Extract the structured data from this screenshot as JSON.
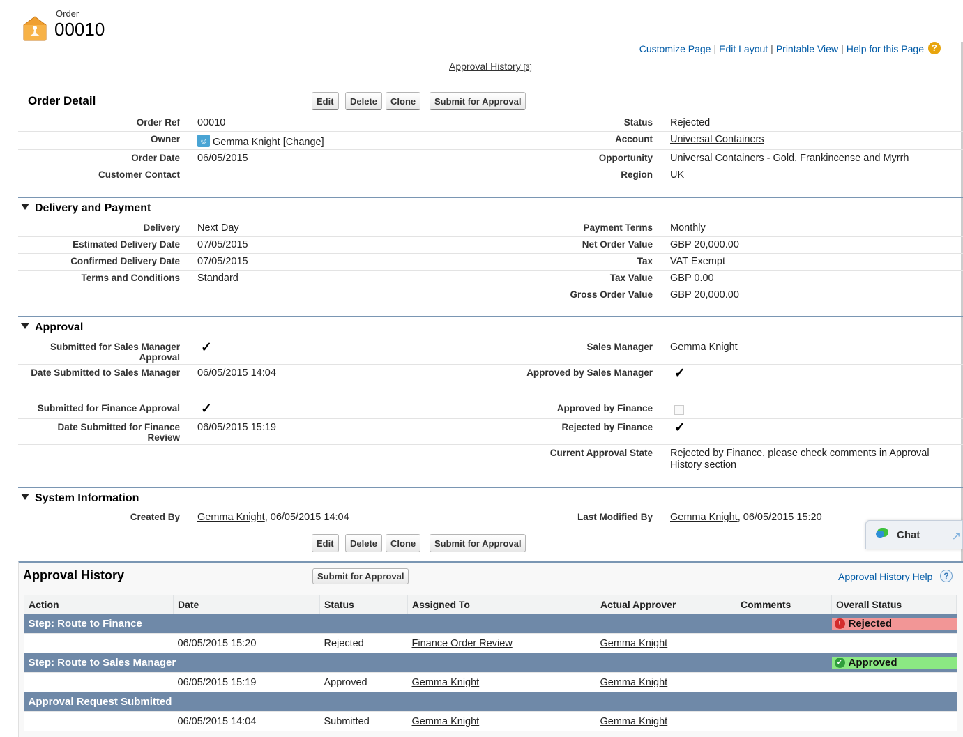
{
  "header": {
    "object_type": "Order",
    "record_number": "00010"
  },
  "top_links": {
    "customize": "Customize Page",
    "edit_layout": "Edit Layout",
    "printable": "Printable View",
    "help": "Help for this Page",
    "help_icon": "?"
  },
  "related_link": {
    "label": "Approval History",
    "count": "[3]"
  },
  "buttons": {
    "edit": "Edit",
    "delete": "Delete",
    "clone": "Clone",
    "submit": "Submit for Approval"
  },
  "order_detail": {
    "title": "Order Detail",
    "order_ref_label": "Order Ref",
    "order_ref": "00010",
    "owner_label": "Owner",
    "owner": "Gemma Knight",
    "owner_change": "[Change]",
    "order_date_label": "Order Date",
    "order_date": "06/05/2015",
    "customer_contact_label": "Customer Contact",
    "status_label": "Status",
    "status": "Rejected",
    "account_label": "Account",
    "account": "Universal Containers",
    "opportunity_label": "Opportunity",
    "opportunity": "Universal Containers - Gold, Frankincense and Myrrh",
    "region_label": "Region",
    "region": "UK"
  },
  "delivery": {
    "title": "Delivery and Payment",
    "delivery_label": "Delivery",
    "delivery": "Next Day",
    "est_label": "Estimated Delivery Date",
    "est": "07/05/2015",
    "conf_label": "Confirmed Delivery Date",
    "conf": "07/05/2015",
    "terms_label": "Terms and Conditions",
    "terms": "Standard",
    "payment_label": "Payment Terms",
    "payment": "Monthly",
    "net_label": "Net Order Value",
    "net": "GBP 20,000.00",
    "tax_label": "Tax",
    "tax": "VAT Exempt",
    "taxval_label": "Tax Value",
    "taxval": "GBP 0.00",
    "gross_label": "Gross Order Value",
    "gross": "GBP 20,000.00"
  },
  "approval": {
    "title": "Approval",
    "sub_sm_label": "Submitted for Sales Manager Approval",
    "date_sm_label": "Date Submitted to Sales Manager",
    "date_sm": "06/05/2015 14:04",
    "sub_fin_label": "Submitted for Finance Approval",
    "date_fin_label": "Date Submitted for Finance Review",
    "date_fin": "06/05/2015 15:19",
    "sm_label": "Sales Manager",
    "sm": "Gemma Knight",
    "appr_sm_label": "Approved by Sales Manager",
    "appr_fin_label": "Approved by Finance",
    "rej_fin_label": "Rejected by Finance",
    "state_label": "Current Approval State",
    "state": "Rejected by Finance, please check comments in Approval History section",
    "check_glyph": "✓"
  },
  "system": {
    "title": "System Information",
    "created_label": "Created By",
    "created_user": "Gemma Knight",
    "created_date": ", 06/05/2015 14:04",
    "modified_label": "Last Modified By",
    "modified_user": "Gemma Knight",
    "modified_date": ", 06/05/2015 15:20"
  },
  "chat": {
    "label": "Chat"
  },
  "approval_history": {
    "title": "Approval History",
    "help": "Approval History Help",
    "help_icon": "?",
    "columns": [
      "Action",
      "Date",
      "Status",
      "Assigned To",
      "Actual Approver",
      "Comments",
      "Overall Status"
    ],
    "steps": [
      {
        "name": "Step: Route to Finance",
        "overall": "Rejected",
        "date": "06/05/2015 15:20",
        "status": "Rejected",
        "assigned": "Finance Order Review",
        "approver": "Gemma Knight"
      },
      {
        "name": "Step: Route to Sales Manager",
        "overall": "Approved",
        "date": "06/05/2015 15:19",
        "status": "Approved",
        "assigned": "Gemma Knight",
        "approver": "Gemma Knight"
      },
      {
        "name": "Approval Request Submitted",
        "overall": "",
        "date": "06/05/2015 14:04",
        "status": "Submitted",
        "assigned": "Gemma Knight",
        "approver": "Gemma Knight"
      }
    ]
  },
  "colors": {
    "link": "#015ba7",
    "section_rule": "#7a96b3",
    "step_row": "#6f89a8",
    "rejected": "#f29696",
    "approved": "#8be883"
  }
}
